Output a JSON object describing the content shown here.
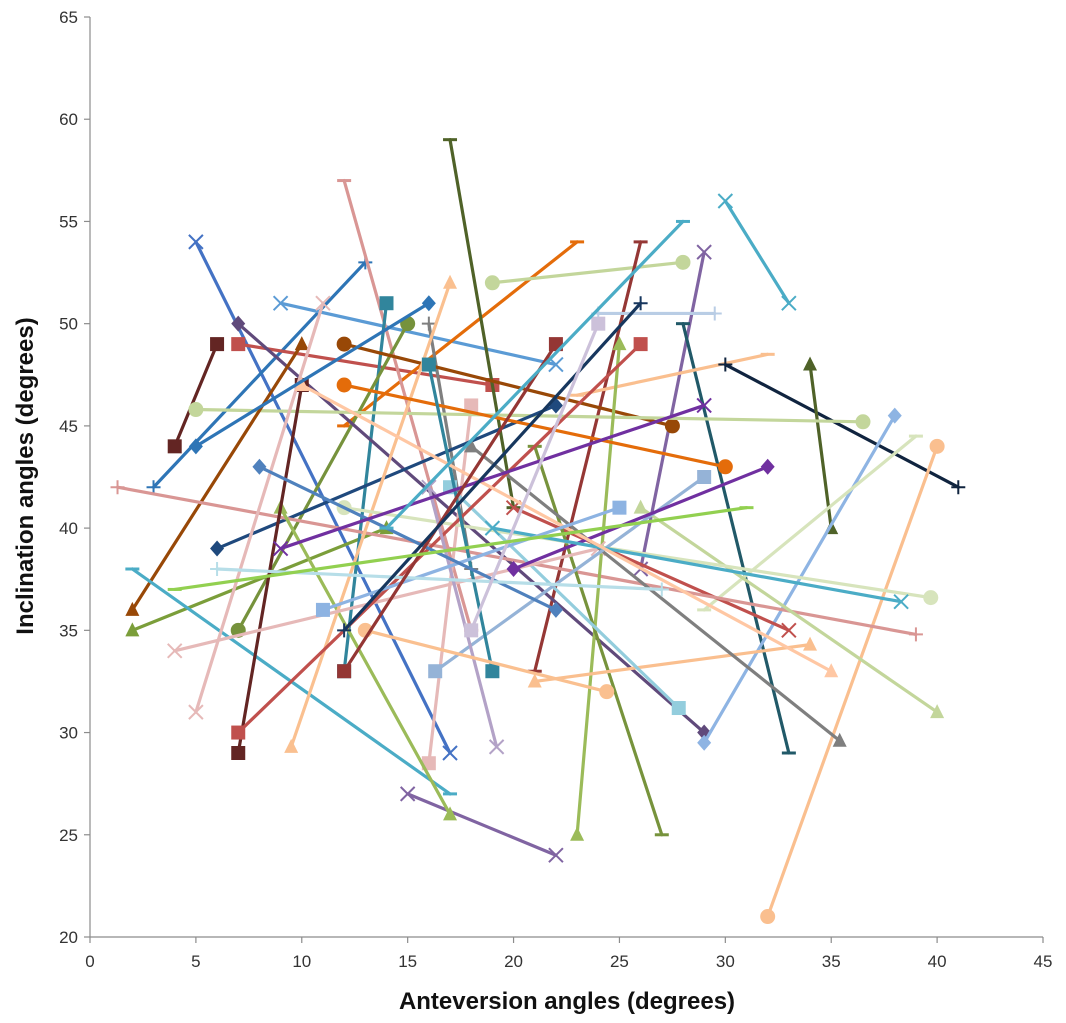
{
  "chart_data": {
    "type": "line",
    "title": "",
    "xlabel": "Anteversion angles (degrees)",
    "ylabel": "Inclination angles (degrees)",
    "xlim": [
      0,
      45
    ],
    "ylim": [
      20,
      65
    ],
    "x_ticks": [
      "0",
      "5",
      "10",
      "15",
      "20",
      "25",
      "30",
      "35",
      "40",
      "45"
    ],
    "y_ticks": [
      "20",
      "25",
      "30",
      "35",
      "40",
      "45",
      "50",
      "55",
      "60",
      "65"
    ],
    "grid": false,
    "legend": "none",
    "series": [
      {
        "color": "#4472c4",
        "marker": "x",
        "points": [
          [
            5,
            54
          ],
          [
            17,
            29
          ]
        ]
      },
      {
        "color": "#7b9e3a",
        "marker": "triangle",
        "points": [
          [
            2,
            35
          ],
          [
            14,
            40
          ]
        ]
      },
      {
        "color": "#2e75b6",
        "marker": "plus",
        "points": [
          [
            3,
            42
          ],
          [
            13,
            53
          ]
        ]
      },
      {
        "color": "#c0504d",
        "marker": "square",
        "points": [
          [
            7,
            49
          ],
          [
            19,
            47
          ]
        ]
      },
      {
        "color": "#5b9bd5",
        "marker": "x",
        "points": [
          [
            9,
            51
          ],
          [
            22,
            48
          ]
        ]
      },
      {
        "color": "#e46c0a",
        "marker": "dash",
        "points": [
          [
            12,
            45
          ],
          [
            23,
            54
          ]
        ]
      },
      {
        "color": "#4f6228",
        "marker": "dash",
        "points": [
          [
            17,
            59
          ],
          [
            20,
            41
          ]
        ]
      },
      {
        "color": "#d99694",
        "marker": "dash",
        "points": [
          [
            12,
            57
          ],
          [
            18,
            35
          ]
        ]
      },
      {
        "color": "#4bacc6",
        "marker": "x",
        "points": [
          [
            30,
            56
          ],
          [
            33,
            51
          ]
        ]
      },
      {
        "color": "#c3d69b",
        "marker": "circle",
        "points": [
          [
            19,
            52
          ],
          [
            28,
            53
          ]
        ]
      },
      {
        "color": "#953735",
        "marker": "dash",
        "points": [
          [
            26,
            54
          ],
          [
            21,
            33
          ]
        ]
      },
      {
        "color": "#8064a2",
        "marker": "x",
        "points": [
          [
            29,
            53.5
          ],
          [
            26,
            38
          ]
        ]
      },
      {
        "color": "#31859c",
        "marker": "square",
        "points": [
          [
            14,
            51
          ],
          [
            12,
            33
          ]
        ]
      },
      {
        "color": "#76923c",
        "marker": "circle",
        "points": [
          [
            15,
            50
          ],
          [
            7,
            35
          ]
        ]
      },
      {
        "color": "#604a7b",
        "marker": "diamond",
        "points": [
          [
            7,
            50
          ],
          [
            29,
            30
          ]
        ]
      },
      {
        "color": "#215968",
        "marker": "dash",
        "points": [
          [
            28,
            50
          ],
          [
            33,
            29
          ]
        ]
      },
      {
        "color": "#7f7f7f",
        "marker": "plus",
        "points": [
          [
            16,
            50
          ],
          [
            18,
            38
          ]
        ]
      },
      {
        "color": "#b9cde5",
        "marker": "plus",
        "points": [
          [
            24,
            50.5
          ],
          [
            29.5,
            50.5
          ]
        ]
      },
      {
        "color": "#632523",
        "marker": "square",
        "points": [
          [
            6,
            49
          ],
          [
            4,
            44
          ]
        ]
      },
      {
        "color": "#984807",
        "marker": "circle",
        "points": [
          [
            12,
            49
          ],
          [
            27.5,
            45
          ]
        ]
      },
      {
        "color": "#fabf8f",
        "marker": "dash",
        "points": [
          [
            23,
            46.5
          ],
          [
            32,
            48.5
          ]
        ]
      },
      {
        "color": "#e6b9b8",
        "marker": "square",
        "points": [
          [
            16,
            28.5
          ],
          [
            18,
            46
          ]
        ]
      },
      {
        "color": "#10243f",
        "marker": "plus",
        "points": [
          [
            30,
            48
          ],
          [
            41,
            42
          ]
        ]
      },
      {
        "color": "#4f6228",
        "marker": "triangle",
        "points": [
          [
            34,
            48
          ],
          [
            35,
            40
          ]
        ]
      },
      {
        "color": "#c3d69b",
        "marker": "circle",
        "points": [
          [
            5,
            45.8
          ],
          [
            36.5,
            45.2
          ]
        ]
      },
      {
        "color": "#8eb4e3",
        "marker": "diamond",
        "points": [
          [
            38,
            45.5
          ],
          [
            29,
            29.5
          ]
        ]
      },
      {
        "color": "#fabf8f",
        "marker": "circle",
        "points": [
          [
            40,
            44
          ],
          [
            32,
            21
          ]
        ]
      },
      {
        "color": "#d7e4bc",
        "marker": "dash",
        "points": [
          [
            39,
            44.5
          ],
          [
            29,
            36
          ]
        ]
      },
      {
        "color": "#984807",
        "marker": "triangle",
        "points": [
          [
            2,
            36
          ],
          [
            10,
            49
          ]
        ]
      },
      {
        "color": "#1f497d",
        "marker": "diamond",
        "points": [
          [
            6,
            39
          ],
          [
            22,
            46
          ]
        ]
      },
      {
        "color": "#c0504d",
        "marker": "x",
        "points": [
          [
            33,
            35
          ],
          [
            20,
            41
          ]
        ]
      },
      {
        "color": "#d99694",
        "marker": "plus",
        "points": [
          [
            1.3,
            42
          ],
          [
            39,
            34.8
          ]
        ]
      },
      {
        "color": "#8064a2",
        "marker": "x",
        "points": [
          [
            15,
            27
          ],
          [
            22,
            24
          ]
        ]
      },
      {
        "color": "#4bacc6",
        "marker": "dash",
        "points": [
          [
            2,
            38
          ],
          [
            17,
            27
          ]
        ]
      },
      {
        "color": "#9bbb59",
        "marker": "triangle",
        "points": [
          [
            23,
            25
          ],
          [
            25,
            49
          ]
        ]
      },
      {
        "color": "#77933c",
        "marker": "dash",
        "points": [
          [
            27,
            25
          ],
          [
            21,
            44
          ]
        ]
      },
      {
        "color": "#9bbb59",
        "marker": "triangle",
        "points": [
          [
            17,
            26
          ],
          [
            9,
            41
          ]
        ]
      },
      {
        "color": "#632523",
        "marker": "square",
        "points": [
          [
            7,
            29
          ],
          [
            10,
            47
          ]
        ]
      },
      {
        "color": "#fac090",
        "marker": "triangle",
        "points": [
          [
            9.5,
            29.3
          ],
          [
            17,
            52
          ]
        ]
      },
      {
        "color": "#e6b9b8",
        "marker": "x",
        "points": [
          [
            5,
            31
          ],
          [
            11,
            51
          ]
        ]
      },
      {
        "color": "#fabf8f",
        "marker": "triangle",
        "points": [
          [
            21,
            32.5
          ],
          [
            34,
            34.3
          ]
        ]
      },
      {
        "color": "#c3d69b",
        "marker": "triangle",
        "points": [
          [
            40,
            31
          ],
          [
            26,
            41
          ]
        ]
      },
      {
        "color": "#93cddd",
        "marker": "square",
        "points": [
          [
            27.8,
            31.2
          ],
          [
            17,
            42
          ]
        ]
      },
      {
        "color": "#d7e4bc",
        "marker": "circle",
        "points": [
          [
            39.7,
            36.6
          ],
          [
            12,
            41
          ]
        ]
      },
      {
        "color": "#e6b9b8",
        "marker": "x",
        "points": [
          [
            4,
            34
          ],
          [
            24,
            39
          ]
        ]
      },
      {
        "color": "#7f7f7f",
        "marker": "triangle",
        "points": [
          [
            35.4,
            29.6
          ],
          [
            18,
            44
          ]
        ]
      },
      {
        "color": "#e46c0a",
        "marker": "circle",
        "points": [
          [
            30,
            43
          ],
          [
            12,
            47
          ]
        ]
      },
      {
        "color": "#95b3d7",
        "marker": "square",
        "points": [
          [
            29,
            42.5
          ],
          [
            16.3,
            33
          ]
        ]
      },
      {
        "color": "#7030a0",
        "marker": "diamond",
        "points": [
          [
            32,
            43
          ],
          [
            20,
            38
          ]
        ]
      },
      {
        "color": "#c0504d",
        "marker": "square",
        "points": [
          [
            26,
            49
          ],
          [
            7,
            30
          ]
        ]
      },
      {
        "color": "#31859c",
        "marker": "square",
        "points": [
          [
            19,
            33
          ],
          [
            16,
            48
          ]
        ]
      },
      {
        "color": "#4bacc6",
        "marker": "x",
        "points": [
          [
            38.3,
            36.4
          ],
          [
            19,
            40
          ]
        ]
      },
      {
        "color": "#b3a2c7",
        "marker": "x",
        "points": [
          [
            19.2,
            29.3
          ],
          [
            16,
            42
          ]
        ]
      },
      {
        "color": "#ffc7a3",
        "marker": "triangle",
        "points": [
          [
            35,
            33
          ],
          [
            10,
            47
          ]
        ]
      },
      {
        "color": "#fac090",
        "marker": "circle",
        "points": [
          [
            24.4,
            32
          ],
          [
            13,
            35
          ]
        ]
      },
      {
        "color": "#8db3e2",
        "marker": "square",
        "points": [
          [
            11,
            36
          ],
          [
            25,
            41
          ]
        ]
      },
      {
        "color": "#4f81bd",
        "marker": "diamond",
        "points": [
          [
            8,
            43
          ],
          [
            22,
            36
          ]
        ]
      },
      {
        "color": "#b7dee8",
        "marker": "plus",
        "points": [
          [
            6,
            38
          ],
          [
            27,
            37
          ]
        ]
      },
      {
        "color": "#7030a0",
        "marker": "x",
        "points": [
          [
            29,
            46
          ],
          [
            9,
            39
          ]
        ]
      },
      {
        "color": "#943634",
        "marker": "square",
        "points": [
          [
            12,
            33
          ],
          [
            22,
            49
          ]
        ]
      },
      {
        "color": "#17375e",
        "marker": "plus",
        "points": [
          [
            26,
            51
          ],
          [
            12,
            35
          ]
        ]
      },
      {
        "color": "#ccc1da",
        "marker": "square",
        "points": [
          [
            18,
            35
          ],
          [
            24,
            50
          ]
        ]
      },
      {
        "color": "#2e75b6",
        "marker": "diamond",
        "points": [
          [
            16,
            51
          ],
          [
            5,
            44
          ]
        ]
      },
      {
        "color": "#92d050",
        "marker": "dash",
        "points": [
          [
            4,
            37
          ],
          [
            31,
            41
          ]
        ]
      },
      {
        "color": "#4bacc6",
        "marker": "dash",
        "points": [
          [
            28,
            55
          ],
          [
            14,
            40
          ]
        ]
      }
    ]
  }
}
